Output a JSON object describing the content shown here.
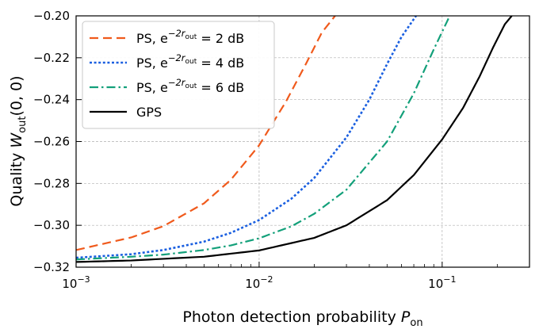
{
  "chart_data": {
    "type": "line",
    "xscale": "log",
    "xlim": [
      0.001,
      0.3
    ],
    "ylim": [
      -0.32,
      -0.2
    ],
    "xlabel": "Photon detection probability",
    "xlabel_sym": "P",
    "xlabel_sub": "on",
    "ylabel": "Quality",
    "ylabel_sym": "W",
    "ylabel_sub": "out",
    "ylabel_args": "(0, 0)",
    "x_ticks": [
      {
        "value": 0.001,
        "base": "10",
        "exp": "−3"
      },
      {
        "value": 0.01,
        "base": "10",
        "exp": "−2"
      },
      {
        "value": 0.1,
        "base": "10",
        "exp": "−1"
      }
    ],
    "y_ticks": [
      {
        "value": -0.32,
        "label": "−0.32"
      },
      {
        "value": -0.3,
        "label": "−0.30"
      },
      {
        "value": -0.28,
        "label": "−0.28"
      },
      {
        "value": -0.26,
        "label": "−0.26"
      },
      {
        "value": -0.24,
        "label": "−0.24"
      },
      {
        "value": -0.22,
        "label": "−0.22"
      },
      {
        "value": -0.2,
        "label": "−0.20"
      }
    ],
    "grid": true,
    "legend_position": "top-left",
    "series": [
      {
        "name": "PS, 2 dB",
        "legend_prefix": "PS, e",
        "legend_exp": "−2r",
        "legend_exp_sub": "out",
        "legend_suffix": " = 2 dB",
        "color": "#f05a1c",
        "style": "dashed",
        "x": [
          0.001,
          0.002,
          0.003,
          0.005,
          0.007,
          0.01,
          0.014,
          0.018,
          0.022,
          0.026
        ],
        "y": [
          -0.3118,
          -0.3058,
          -0.3004,
          -0.2895,
          -0.2783,
          -0.2618,
          -0.241,
          -0.223,
          -0.208,
          -0.2
        ]
      },
      {
        "name": "PS, 4 dB",
        "legend_prefix": "PS, e",
        "legend_exp": "−2r",
        "legend_exp_sub": "out",
        "legend_suffix": " = 4 dB",
        "color": "#1a5fe0",
        "style": "dotted",
        "x": [
          0.001,
          0.002,
          0.003,
          0.005,
          0.007,
          0.01,
          0.015,
          0.02,
          0.03,
          0.04,
          0.05,
          0.06,
          0.072
        ],
        "y": [
          -0.3155,
          -0.3138,
          -0.3118,
          -0.3078,
          -0.3036,
          -0.2975,
          -0.2873,
          -0.2774,
          -0.258,
          -0.24,
          -0.223,
          -0.21,
          -0.2
        ]
      },
      {
        "name": "PS, 6 dB",
        "legend_prefix": "PS, e",
        "legend_exp": "−2r",
        "legend_exp_sub": "out",
        "legend_suffix": " = 6 dB",
        "color": "#13a07a",
        "style": "dashdot",
        "x": [
          0.001,
          0.002,
          0.003,
          0.005,
          0.007,
          0.01,
          0.015,
          0.02,
          0.03,
          0.05,
          0.07,
          0.09,
          0.11
        ],
        "y": [
          -0.3163,
          -0.315,
          -0.314,
          -0.3118,
          -0.3096,
          -0.3062,
          -0.3005,
          -0.2945,
          -0.283,
          -0.26,
          -0.237,
          -0.216,
          -0.2
        ]
      },
      {
        "name": "GPS",
        "legend_prefix": "GPS",
        "legend_exp": "",
        "legend_exp_sub": "",
        "legend_suffix": "",
        "color": "#000000",
        "style": "solid",
        "x": [
          0.001,
          0.002,
          0.005,
          0.01,
          0.02,
          0.03,
          0.05,
          0.07,
          0.1,
          0.13,
          0.16,
          0.19,
          0.22,
          0.24
        ],
        "y": [
          -0.3175,
          -0.3168,
          -0.315,
          -0.312,
          -0.306,
          -0.3,
          -0.288,
          -0.276,
          -0.259,
          -0.244,
          -0.229,
          -0.215,
          -0.204,
          -0.2
        ]
      }
    ]
  }
}
